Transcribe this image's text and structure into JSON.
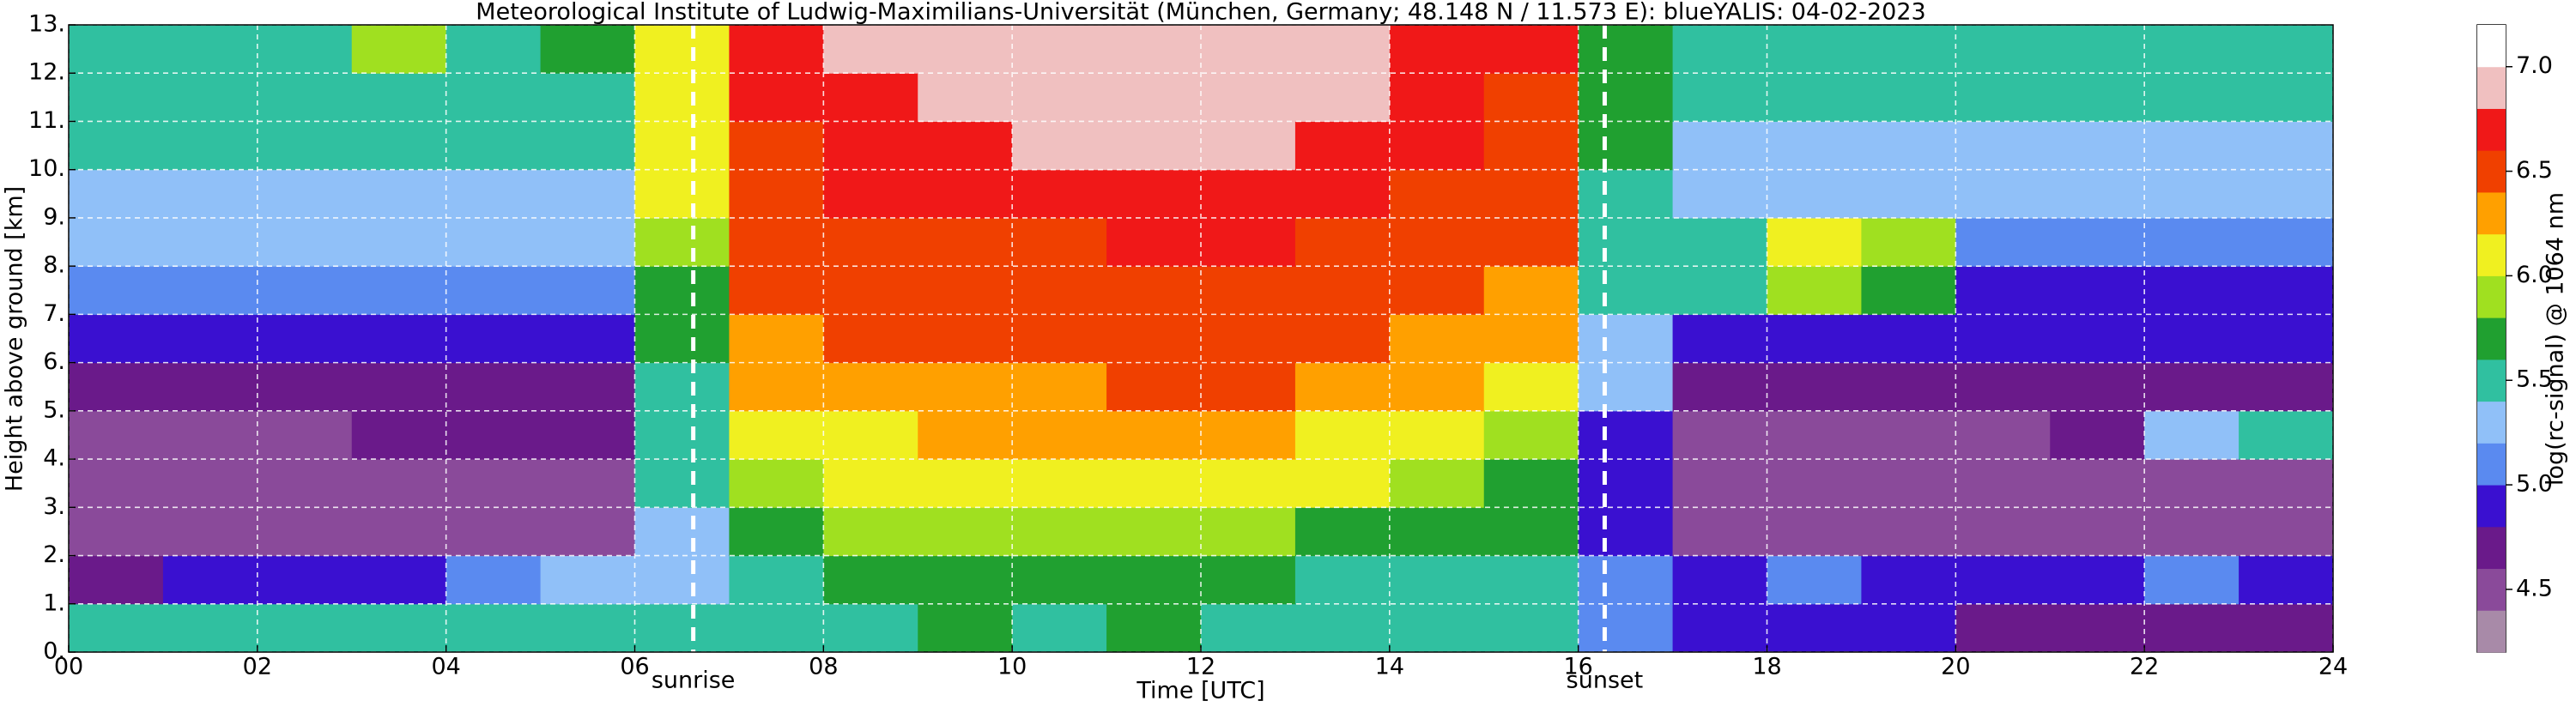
{
  "chart_data": {
    "type": "heatmap",
    "title": "Meteorological Institute of Ludwig-Maximilians-Universität (München, Germany; 48.148 N / 11.573 E):     blueYALIS: 04-02-2023",
    "x_label": "Time [UTC]",
    "y_label": "Height above ground [km]",
    "colorbar_label": "log(rc-signal) @ 1064 nm",
    "xlim": [
      0,
      24
    ],
    "ylim": [
      0,
      13
    ],
    "xticks": [
      {
        "value": 0,
        "label": "00"
      },
      {
        "value": 2,
        "label": "02"
      },
      {
        "value": 4,
        "label": "04"
      },
      {
        "value": 6,
        "label": "06"
      },
      {
        "value": 8,
        "label": "08"
      },
      {
        "value": 10,
        "label": "10"
      },
      {
        "value": 12,
        "label": "12"
      },
      {
        "value": 14,
        "label": "14"
      },
      {
        "value": 16,
        "label": "16"
      },
      {
        "value": 18,
        "label": "18"
      },
      {
        "value": 20,
        "label": "20"
      },
      {
        "value": 22,
        "label": "22"
      },
      {
        "value": 24,
        "label": "24"
      }
    ],
    "yticks": [
      {
        "value": 0,
        "label": "0."
      },
      {
        "value": 1,
        "label": "1."
      },
      {
        "value": 2,
        "label": "2."
      },
      {
        "value": 3,
        "label": "3."
      },
      {
        "value": 4,
        "label": "4."
      },
      {
        "value": 5,
        "label": "5."
      },
      {
        "value": 6,
        "label": "6."
      },
      {
        "value": 7,
        "label": "7."
      },
      {
        "value": 8,
        "label": "8."
      },
      {
        "value": 9,
        "label": "9."
      },
      {
        "value": 10,
        "label": "10."
      },
      {
        "value": 11,
        "label": "11."
      },
      {
        "value": 12,
        "label": "12."
      },
      {
        "value": 13,
        "label": "13."
      }
    ],
    "grid": true,
    "x_edges": [
      0,
      1,
      2,
      3,
      4,
      5,
      6,
      7,
      8,
      9,
      10,
      11,
      12,
      13,
      14,
      15,
      16,
      17,
      18,
      19,
      20,
      21,
      22,
      23,
      24
    ],
    "y_edges": [
      0,
      1,
      2,
      3,
      4,
      5,
      6,
      7,
      8,
      9,
      10,
      11,
      12,
      13
    ],
    "values": [
      [
        5.5,
        5.6,
        5.6,
        5.5,
        5.5,
        5.5,
        5.4,
        5.6,
        5.6,
        5.7,
        5.6,
        5.7,
        5.6,
        5.5,
        5.6,
        5.5,
        5.1,
        4.9,
        4.9,
        4.9,
        4.8,
        4.8,
        4.8,
        4.8
      ],
      [
        4.7,
        4.9,
        5.0,
        5.0,
        5.1,
        5.2,
        5.2,
        5.6,
        5.7,
        5.8,
        5.7,
        5.8,
        5.7,
        5.6,
        5.6,
        5.5,
        5.1,
        5.0,
        5.1,
        5.0,
        5.0,
        5.0,
        5.1,
        5.0
      ],
      [
        4.5,
        4.5,
        4.6,
        4.6,
        4.6,
        4.6,
        5.3,
        5.8,
        5.9,
        5.9,
        5.9,
        5.9,
        5.9,
        5.8,
        5.8,
        5.7,
        4.9,
        4.5,
        4.5,
        4.5,
        4.5,
        4.5,
        4.5,
        4.5
      ],
      [
        4.5,
        4.5,
        4.5,
        4.6,
        4.6,
        4.6,
        5.4,
        5.9,
        6.0,
        6.1,
        6.0,
        6.1,
        6.1,
        6.0,
        5.9,
        5.8,
        4.9,
        4.5,
        4.5,
        4.5,
        4.5,
        4.5,
        4.6,
        4.6
      ],
      [
        4.6,
        4.6,
        4.6,
        4.7,
        4.7,
        4.8,
        5.5,
        6.0,
        6.1,
        6.2,
        6.2,
        6.2,
        6.2,
        6.1,
        6.0,
        5.9,
        5.0,
        4.6,
        4.6,
        4.6,
        4.6,
        4.7,
        5.2,
        5.4
      ],
      [
        4.8,
        4.8,
        4.8,
        4.8,
        4.8,
        4.8,
        5.6,
        6.2,
        6.3,
        6.3,
        6.3,
        6.4,
        6.4,
        6.3,
        6.2,
        6.1,
        5.2,
        4.8,
        4.8,
        4.8,
        4.8,
        4.8,
        4.8,
        4.8
      ],
      [
        5.0,
        5.0,
        5.0,
        5.0,
        5.0,
        5.0,
        5.7,
        6.3,
        6.4,
        6.4,
        6.4,
        6.5,
        6.5,
        6.4,
        6.3,
        6.2,
        5.3,
        4.9,
        4.9,
        4.9,
        4.9,
        4.9,
        4.9,
        4.9
      ],
      [
        5.1,
        5.1,
        5.1,
        5.1,
        5.1,
        5.1,
        5.8,
        6.4,
        6.5,
        6.5,
        6.5,
        6.6,
        6.6,
        6.5,
        6.4,
        6.3,
        5.4,
        5.4,
        5.9,
        5.8,
        5.0,
        5.0,
        5.0,
        5.0
      ],
      [
        5.2,
        5.2,
        5.2,
        5.2,
        5.2,
        5.2,
        5.9,
        6.5,
        6.6,
        6.6,
        6.6,
        6.7,
        6.7,
        6.6,
        6.5,
        6.4,
        5.5,
        5.6,
        6.1,
        5.9,
        5.1,
        5.1,
        5.1,
        5.1
      ],
      [
        5.3,
        5.3,
        5.3,
        5.3,
        5.3,
        5.3,
        6.0,
        6.6,
        6.7,
        6.7,
        6.8,
        6.8,
        6.8,
        6.7,
        6.6,
        6.5,
        5.6,
        5.2,
        5.2,
        5.2,
        5.2,
        5.2,
        5.2,
        5.2
      ],
      [
        5.4,
        5.4,
        5.4,
        5.4,
        5.4,
        5.4,
        6.0,
        6.6,
        6.8,
        6.8,
        6.9,
        6.9,
        6.9,
        6.8,
        6.7,
        6.6,
        5.7,
        5.3,
        5.3,
        5.3,
        5.3,
        5.3,
        5.3,
        5.3
      ],
      [
        5.5,
        5.5,
        5.5,
        5.5,
        5.5,
        5.5,
        6.1,
        6.7,
        6.8,
        6.9,
        7.0,
        7.0,
        7.0,
        6.9,
        6.8,
        6.6,
        5.7,
        5.4,
        5.4,
        5.4,
        5.4,
        5.4,
        5.4,
        5.4
      ],
      [
        5.5,
        5.5,
        5.5,
        5.9,
        5.6,
        5.8,
        6.1,
        6.7,
        6.9,
        6.9,
        7.0,
        7.0,
        7.0,
        6.9,
        6.8,
        6.7,
        5.8,
        5.5,
        5.5,
        5.5,
        5.5,
        5.5,
        5.5,
        5.5
      ]
    ],
    "clim": [
      4.2,
      7.2
    ],
    "cticks": [
      4.5,
      {
        "value": 5.0,
        "label": "5.0"
      },
      5.5,
      {
        "value": 6.0,
        "label": "6.0"
      },
      6.5,
      {
        "value": 7.0,
        "label": "7.0"
      }
    ],
    "colorscale": [
      "#a88aa8",
      "#8a4a9a",
      "#6a1a8a",
      "#3a10d0",
      "#5a8af0",
      "#90c0f8",
      "#30c0a0",
      "#20a030",
      "#a0e020",
      "#f0f020",
      "#ffa000",
      "#f04000",
      "#f01818",
      "#f0c0c0",
      "#ffffff"
    ],
    "annotations": [
      {
        "text": "sunrise",
        "x": 6.62
      },
      {
        "text": "sunset",
        "x": 16.28
      }
    ]
  }
}
